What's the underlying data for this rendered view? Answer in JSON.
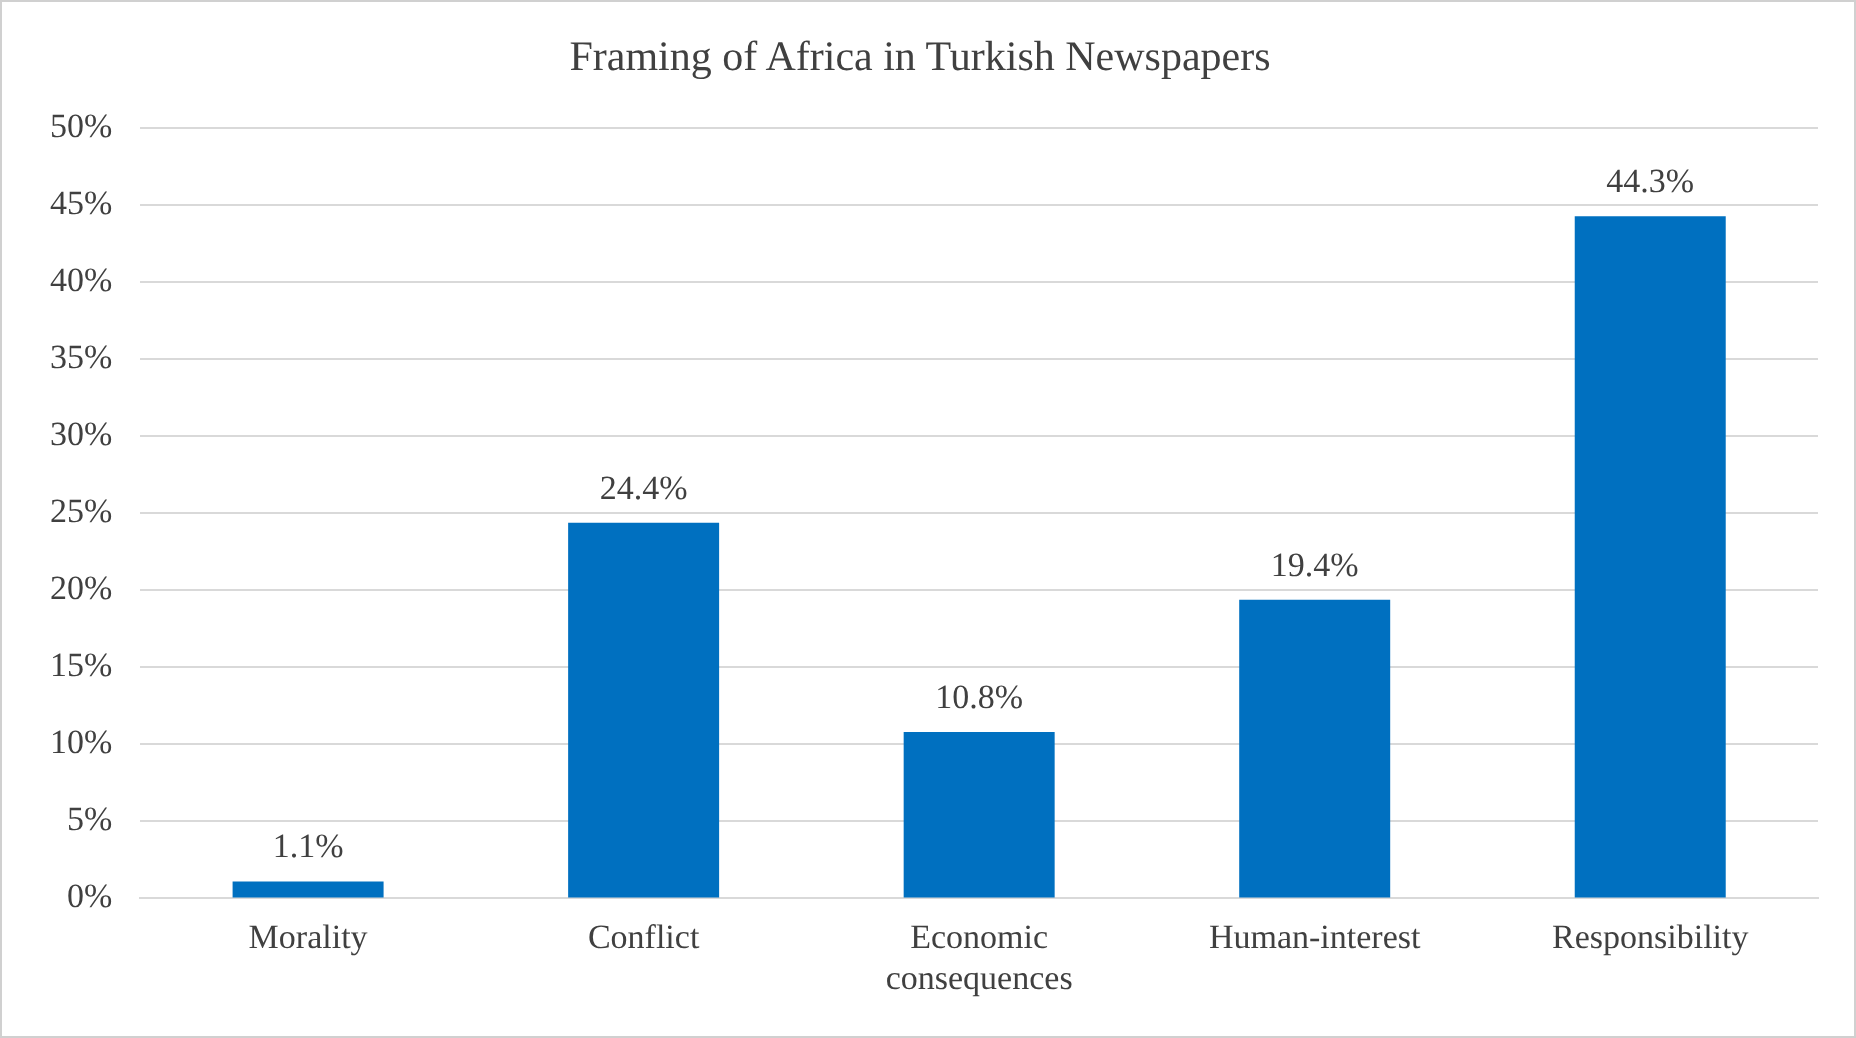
{
  "chart_data": {
    "type": "bar",
    "title": "Framing of Africa in Turkish Newspapers",
    "categories": [
      "Morality",
      "Conflict",
      "Economic consequences",
      "Human-interest",
      "Responsibility"
    ],
    "values": [
      1.1,
      24.4,
      10.8,
      19.4,
      44.3
    ],
    "value_labels": [
      "1.1%",
      "24.4%",
      "10.8%",
      "19.4%",
      "44.3%"
    ],
    "color": "#0070c0",
    "ylim": [
      0,
      50
    ],
    "yticks": [
      {
        "value": 0,
        "label": "0%"
      },
      {
        "value": 5,
        "label": "5%"
      },
      {
        "value": 10,
        "label": "10%"
      },
      {
        "value": 15,
        "label": "15%"
      },
      {
        "value": 20,
        "label": "20%"
      },
      {
        "value": 25,
        "label": "25%"
      },
      {
        "value": 30,
        "label": "30%"
      },
      {
        "value": 35,
        "label": "35%"
      },
      {
        "value": 40,
        "label": "40%"
      },
      {
        "value": 45,
        "label": "45%"
      },
      {
        "value": 50,
        "label": "50%"
      }
    ],
    "grid": "y",
    "legend": false
  }
}
